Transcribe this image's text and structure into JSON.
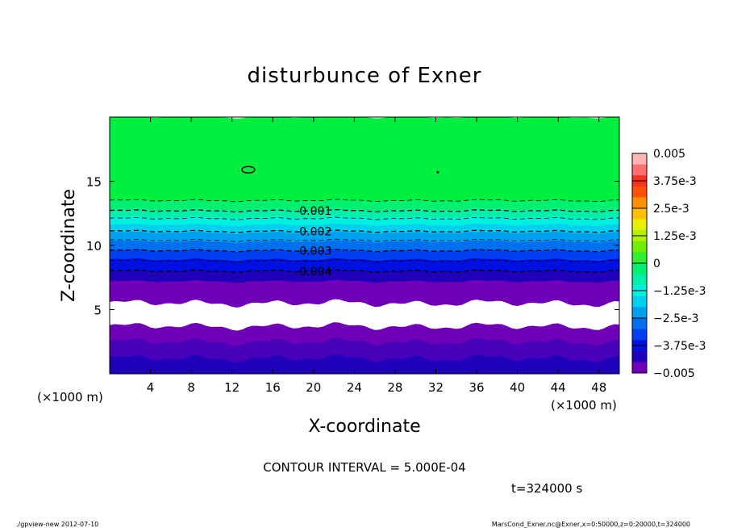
{
  "chart_data": {
    "type": "heatmap",
    "title": "disturbunce of Exner",
    "xlabel": "X-coordinate",
    "ylabel": "Z-coordinate",
    "x_unit_left": "(×1000 m)",
    "x_unit_right": "(×1000 m)",
    "xlim": [
      0,
      50
    ],
    "ylim": [
      0,
      20
    ],
    "x_ticks": [
      "4",
      "8",
      "12",
      "16",
      "20",
      "24",
      "28",
      "32",
      "36",
      "40",
      "44",
      "48"
    ],
    "y_ticks": [
      "5",
      "10",
      "15"
    ],
    "colorbar": {
      "labels": [
        "0.005",
        "3.75e-3",
        "2.5e-3",
        "1.25e-3",
        "0",
        "−1.25e-3",
        "−2.5e-3",
        "−3.75e-3",
        "−0.005"
      ],
      "range": [
        -0.005,
        0.005
      ],
      "levels": [
        {
          "from": 0.0045,
          "to": 0.005,
          "color": "#ffb4b4"
        },
        {
          "from": 0.004,
          "to": 0.0045,
          "color": "#ff7070"
        },
        {
          "from": 0.0035,
          "to": 0.004,
          "color": "#ff3020"
        },
        {
          "from": 0.003,
          "to": 0.0035,
          "color": "#ff5000"
        },
        {
          "from": 0.0025,
          "to": 0.003,
          "color": "#ff9000"
        },
        {
          "from": 0.002,
          "to": 0.0025,
          "color": "#ffc000"
        },
        {
          "from": 0.0015,
          "to": 0.002,
          "color": "#e8f000"
        },
        {
          "from": 0.001,
          "to": 0.0015,
          "color": "#b0f000"
        },
        {
          "from": 0.0005,
          "to": 0.001,
          "color": "#70f000"
        },
        {
          "from": 0.0,
          "to": 0.0005,
          "color": "#30f030"
        },
        {
          "from": -0.0005,
          "to": 0.0,
          "color": "#00f070"
        },
        {
          "from": -0.001,
          "to": -0.0005,
          "color": "#00f0a8"
        },
        {
          "from": -0.0015,
          "to": -0.001,
          "color": "#00f0e0"
        },
        {
          "from": -0.002,
          "to": -0.0015,
          "color": "#00d0f0"
        },
        {
          "from": -0.0025,
          "to": -0.002,
          "color": "#00a0f0"
        },
        {
          "from": -0.003,
          "to": -0.0025,
          "color": "#0070f0"
        },
        {
          "from": -0.0035,
          "to": -0.003,
          "color": "#0040f0"
        },
        {
          "from": -0.004,
          "to": -0.0035,
          "color": "#0010e0"
        },
        {
          "from": -0.0045,
          "to": -0.004,
          "color": "#2000b8"
        },
        {
          "from": -0.005,
          "to": -0.0045,
          "color": "#7000b8"
        }
      ]
    },
    "field_bands": [
      {
        "z_from": 13.5,
        "z_to": 20,
        "color": "#00f040",
        "value": 0.0
      },
      {
        "z_from": 12.8,
        "z_to": 13.5,
        "color": "#00f070",
        "value": -0.0003
      },
      {
        "z_from": 12.2,
        "z_to": 12.8,
        "color": "#00f0a8",
        "value": -0.0008
      },
      {
        "z_from": 11.6,
        "z_to": 12.2,
        "color": "#00f0e0",
        "value": -0.0013
      },
      {
        "z_from": 11.0,
        "z_to": 11.6,
        "color": "#00d0f0",
        "value": -0.0018
      },
      {
        "z_from": 10.3,
        "z_to": 11.0,
        "color": "#00a0f0",
        "value": -0.0023
      },
      {
        "z_from": 9.6,
        "z_to": 10.3,
        "color": "#0070f0",
        "value": -0.0028
      },
      {
        "z_from": 8.9,
        "z_to": 9.6,
        "color": "#0040f0",
        "value": -0.0033
      },
      {
        "z_from": 8.0,
        "z_to": 8.9,
        "color": "#0010e0",
        "value": -0.0038
      },
      {
        "z_from": 7.2,
        "z_to": 8.0,
        "color": "#2000b8",
        "value": -0.0043
      },
      {
        "z_from": 5.5,
        "z_to": 7.2,
        "color": "#7000b8",
        "value": -0.0048
      },
      {
        "z_from": 3.7,
        "z_to": 5.5,
        "color": "#ffffff",
        "value": null
      },
      {
        "z_from": 2.5,
        "z_to": 3.7,
        "color": "#7000b8",
        "value": -0.0048
      },
      {
        "z_from": 1.2,
        "z_to": 2.5,
        "color": "#4800b8",
        "value": -0.0046
      },
      {
        "z_from": 0,
        "z_to": 1.2,
        "color": "#2000b8",
        "value": -0.0043
      }
    ],
    "contour_lines": [
      {
        "z": 13.5,
        "label": ""
      },
      {
        "z": 12.7,
        "label": "-0.001",
        "label_x": 20
      },
      {
        "z": 12.1,
        "label": ""
      },
      {
        "z": 11.1,
        "label": "-0.002",
        "label_x": 20
      },
      {
        "z": 10.4,
        "label": ""
      },
      {
        "z": 9.6,
        "label": "-0.003",
        "label_x": 20
      },
      {
        "z": 8.8,
        "label": ""
      },
      {
        "z": 8.0,
        "label": "-0.004",
        "label_x": 20
      }
    ],
    "annotations": {
      "contour_interval": "CONTOUR INTERVAL = 5.000E-04",
      "time": "t=324000 s",
      "footer_left": "./gpview-new  2012-07-10",
      "footer_right": "MarsCond_Exner.nc@Exner,x=0:50000,z=0:20000,t=324000"
    }
  }
}
